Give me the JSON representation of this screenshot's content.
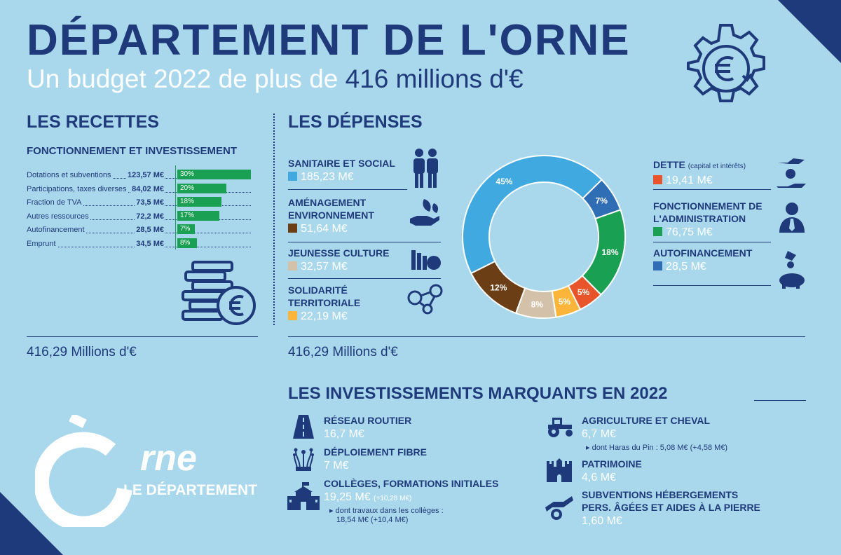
{
  "header": {
    "title": "DÉPARTEMENT DE L'ORNE",
    "subtitle_pre": "Un budget 2022 de plus de ",
    "subtitle_hl": "416 millions d'€"
  },
  "recettes": {
    "heading": "LES RECETTES",
    "subheading": "FONCTIONNEMENT ET INVESTISSEMENT",
    "total": "416,29 Millions d'€"
  },
  "depenses": {
    "heading": "LES DÉPENSES",
    "total": "416,29 Millions d'€",
    "left": [
      {
        "name": "SANITAIRE ET SOCIAL",
        "value": "185,23 M€",
        "color": "#3fa9e0"
      },
      {
        "name": "AMÉNAGEMENT ENVIRONNEMENT",
        "value": "51,64 M€",
        "color": "#6b3e16"
      },
      {
        "name": "JEUNESSE CULTURE",
        "value": "32,57 M€",
        "color": "#d3c2a9"
      },
      {
        "name": "SOLIDARITÉ TERRITORIALE",
        "value": "22,19 M€",
        "color": "#fbb53b"
      }
    ],
    "right": [
      {
        "name": "DETTE",
        "note": "(capital et intérêts)",
        "value": "19,41 M€",
        "color": "#e8552a"
      },
      {
        "name": "FONCTIONNEMENT DE L'ADMINISTRATION",
        "value": "76,75 M€",
        "color": "#1aa052"
      },
      {
        "name": "AUTOFINANCEMENT",
        "value": "28,5 M€",
        "color": "#2f6eb5"
      }
    ]
  },
  "investissements": {
    "heading": "LES INVESTISSEMENTS MARQUANTS EN 2022",
    "items": [
      {
        "name": "RÉSEAU ROUTIER",
        "value": "16,7 M€"
      },
      {
        "name": "DÉPLOIEMENT FIBRE",
        "value": "7 M€"
      },
      {
        "name": "COLLÈGES, FORMATIONS INITIALES",
        "value": "19,25 M€",
        "extra": "(+10,28 M€)",
        "note1": "dont travaux dans les collèges :",
        "note2": "18,54 M€ (+10,4 M€)"
      },
      {
        "name": "AGRICULTURE ET CHEVAL",
        "value": "6,7 M€",
        "note1": "dont Haras du Pin : 5,08 M€ (+4,58 M€)"
      },
      {
        "name": "PATRIMOINE",
        "value": "4,6 M€"
      },
      {
        "name": "SUBVENTIONS HÉBERGEMENTS",
        "name2": "PERS. ÂGÉES ET AIDES À LA PIERRE",
        "value": "1,60 M€"
      }
    ]
  },
  "logo": {
    "rne": "rne",
    "sub": "LE DÉPARTEMENT"
  },
  "colors": {
    "navy": "#1f3a7a",
    "background": "#a9d8ec",
    "bar_green": "#1aa052"
  },
  "chart_data": [
    {
      "type": "bar",
      "orientation": "horizontal",
      "categories": [
        "Dotations et subventions",
        "Participations, taxes diverses",
        "Fraction de TVA",
        "Autres ressources",
        "Autofinancement",
        "Emprunt"
      ],
      "values": [
        123.57,
        84.02,
        73.5,
        72.2,
        28.5,
        34.5
      ],
      "value_labels": [
        "123,57 M€",
        "84,02 M€",
        "73,5 M€",
        "72,2 M€",
        "28,5 M€",
        "34,5 M€"
      ],
      "percent": [
        30,
        20,
        18,
        17,
        7,
        8
      ],
      "percent_labels": [
        "30%",
        "20%",
        "18%",
        "17%",
        "7%",
        "8%"
      ]
    },
    {
      "type": "pie",
      "donut": true,
      "slices": [
        {
          "value": 45,
          "label": "45%",
          "color": "#3fa9e0"
        },
        {
          "value": 7,
          "label": "7%",
          "color": "#2f6eb5"
        },
        {
          "value": 18,
          "label": "18%",
          "color": "#1aa052"
        },
        {
          "value": 5,
          "label": "5%",
          "color": "#e8552a"
        },
        {
          "value": 5,
          "label": "5%",
          "color": "#fbb53b"
        },
        {
          "value": 8,
          "label": "8%",
          "color": "#d3c2a9"
        },
        {
          "value": 12,
          "label": "12%",
          "color": "#6b3e16"
        }
      ]
    }
  ]
}
